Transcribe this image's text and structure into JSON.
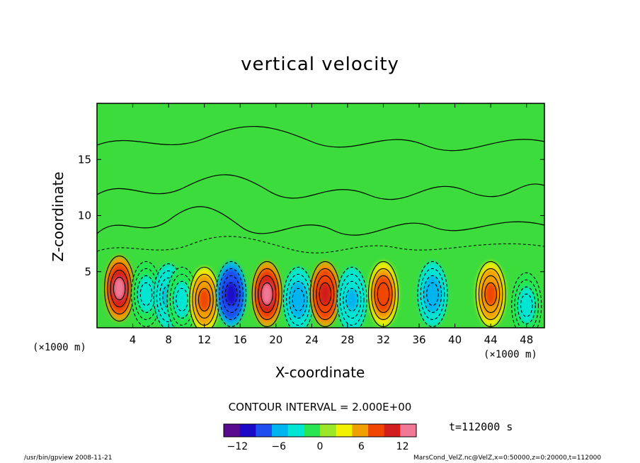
{
  "chart_data": {
    "type": "heatmap",
    "title": "vertical velocity",
    "xlabel": "X-coordinate",
    "ylabel": "Z-coordinate",
    "x_unit_label": "(×1000 m)",
    "y_unit_label": "(×1000 m)",
    "xlim": [
      0,
      50
    ],
    "ylim": [
      0,
      20
    ],
    "x_ticks": [
      "4",
      "8",
      "12",
      "16",
      "20",
      "24",
      "28",
      "32",
      "36",
      "40",
      "44",
      "48"
    ],
    "x_tick_values": [
      4,
      8,
      12,
      16,
      20,
      24,
      28,
      32,
      36,
      40,
      44,
      48
    ],
    "y_ticks": [
      "5",
      "10",
      "15"
    ],
    "y_tick_values": [
      5,
      10,
      15
    ],
    "contour_interval_label": "CONTOUR INTERVAL = 2.000E+00",
    "contour_interval": 2.0,
    "time_label": "t=112000 s",
    "colorbar": {
      "range": [
        -14,
        14
      ],
      "tick_labels": [
        "−12",
        "−6",
        "0",
        "6",
        "12"
      ],
      "tick_values": [
        -12,
        -6,
        0,
        6,
        12
      ],
      "colors": [
        "#5a0a8c",
        "#1a0ac8",
        "#1e50f0",
        "#00b4f0",
        "#00e6d2",
        "#28e650",
        "#9be628",
        "#f0f000",
        "#f0a000",
        "#f04600",
        "#d21e1e",
        "#f07896"
      ]
    },
    "cells": [
      {
        "x": 2.5,
        "z": 3.5,
        "w": 13
      },
      {
        "x": 5.5,
        "z": 3.0,
        "w": -3
      },
      {
        "x": 8.0,
        "z": 2.8,
        "w": -5
      },
      {
        "x": 9.5,
        "z": 2.5,
        "w": -3
      },
      {
        "x": 12.0,
        "z": 2.5,
        "w": 8
      },
      {
        "x": 15.0,
        "z": 3.0,
        "w": -11
      },
      {
        "x": 19.0,
        "z": 3.0,
        "w": 13
      },
      {
        "x": 22.5,
        "z": 2.5,
        "w": -7
      },
      {
        "x": 25.5,
        "z": 3.0,
        "w": 11
      },
      {
        "x": 28.5,
        "z": 2.5,
        "w": -5
      },
      {
        "x": 32.0,
        "z": 3.0,
        "w": 9
      },
      {
        "x": 37.5,
        "z": 3.0,
        "w": -7
      },
      {
        "x": 44.0,
        "z": 3.0,
        "w": 8
      },
      {
        "x": 48.0,
        "z": 2.0,
        "w": -3
      }
    ]
  },
  "footer": {
    "left": "/usr/bin/gpview   2008-11-21",
    "right": "MarsCond_VelZ.nc@VelZ,x=0:50000,z=0:20000,t=112000"
  }
}
